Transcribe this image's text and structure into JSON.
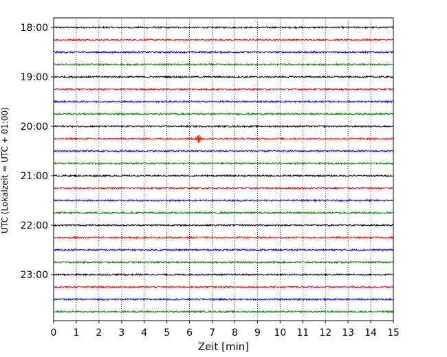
{
  "chart_data": {
    "type": "line",
    "title": "",
    "xlabel": "Zeit  [min]",
    "ylabel": "UTC (Lokalzeit = UTC + 01:00)",
    "xlim": [
      0,
      15
    ],
    "x_ticks": [
      0,
      1,
      2,
      3,
      4,
      5,
      6,
      7,
      8,
      9,
      10,
      11,
      12,
      13,
      14,
      15
    ],
    "y_ticks": [
      "18:00",
      "19:00",
      "20:00",
      "21:00",
      "22:00",
      "23:00"
    ],
    "y_tick_trace_index": [
      0,
      4,
      8,
      12,
      16,
      20
    ],
    "trace_interval_min": 15,
    "trace_count": 24,
    "trace_start": "18:00",
    "trace_colors": [
      "#000000",
      "#ff0000",
      "#0000ff",
      "#008000"
    ],
    "noise_amplitude": 0.012,
    "grid": "vertical dotted lines at each minute",
    "events": [
      {
        "trace_index": 9,
        "time_min": 6.4,
        "amplitude": 0.09
      }
    ]
  }
}
